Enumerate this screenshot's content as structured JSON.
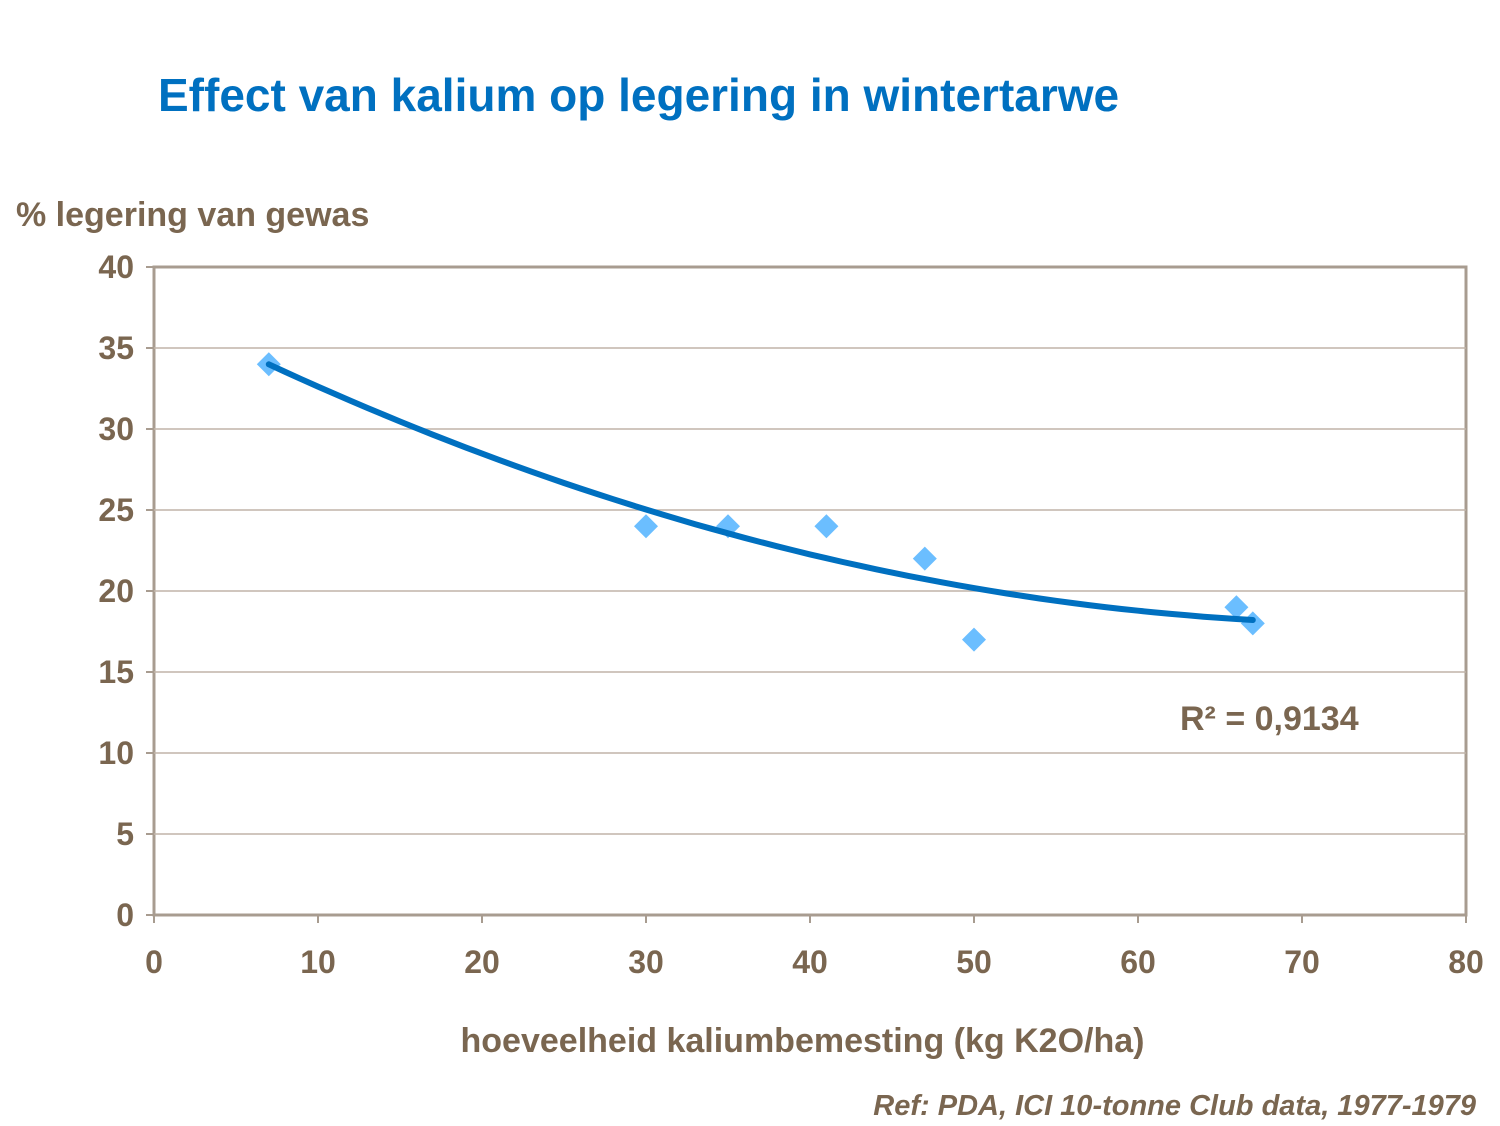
{
  "chart_data": {
    "type": "scatter",
    "title": "Effect van kalium op legering in wintertarwe",
    "xlabel": "hoeveelheid kaliumbemesting (kg K2O/ha)",
    "ylabel": "% legering van gewas",
    "xlim": [
      0,
      80
    ],
    "ylim": [
      0,
      40
    ],
    "xticks": [
      0,
      10,
      20,
      30,
      40,
      50,
      60,
      70,
      80
    ],
    "yticks": [
      0,
      5,
      10,
      15,
      20,
      25,
      30,
      35,
      40
    ],
    "grid": "horizontal",
    "points": [
      {
        "x": 7,
        "y": 34
      },
      {
        "x": 30,
        "y": 24
      },
      {
        "x": 35,
        "y": 24
      },
      {
        "x": 41,
        "y": 24
      },
      {
        "x": 47,
        "y": 22
      },
      {
        "x": 50,
        "y": 17
      },
      {
        "x": 66,
        "y": 19
      },
      {
        "x": 67,
        "y": 18
      }
    ],
    "trendline": {
      "type": "polynomial",
      "order": 2,
      "x_range": [
        7,
        67
      ],
      "r2_label": "R² = 0,9134"
    },
    "colors": {
      "marker": "#6BBEFF",
      "trendline": "#0070C0",
      "grid": "#C0B4A8",
      "axis": "#A89C90",
      "text": "#7A6650",
      "title": "#0070C0"
    }
  },
  "reference": "Ref: PDA, ICI 10-tonne Club data, 1977-1979"
}
